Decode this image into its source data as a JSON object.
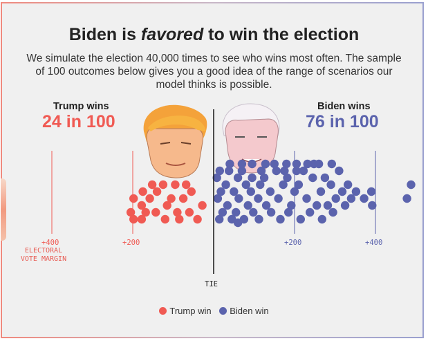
{
  "header": {
    "title_before": "Biden is ",
    "title_emphasis": "favored",
    "title_after": " to win the election",
    "subtitle": "We simulate the election 40,000 times to see who wins most often. The sample of 100 outcomes below gives you a good idea of the range of scenarios our model thinks is possible."
  },
  "trump": {
    "label": "Trump wins",
    "count_text": "24 in 100",
    "color": "#f05a53"
  },
  "biden": {
    "label": "Biden wins",
    "count_text": "76 in 100",
    "color": "#5b63ad"
  },
  "axis": {
    "ticks": [
      "+400",
      "+200",
      "+200",
      "+400"
    ],
    "margin_label": "ELECTORAL VOTE MARGIN",
    "tie_label": "TIE"
  },
  "legend": {
    "trump_label": "Trump win",
    "biden_label": "Biden win"
  },
  "portraits": {
    "trump": "trump-caricature-icon",
    "biden": "biden-caricature-icon"
  },
  "chart_data": {
    "type": "scatter",
    "title": "Biden is favored to win the election",
    "xlabel": "ELECTORAL VOTE MARGIN",
    "xlim": [
      -540,
      540
    ],
    "x_ticks": [
      -400,
      -200,
      200,
      400
    ],
    "series": [
      {
        "name": "Trump win",
        "count": 24
      },
      {
        "name": "Biden win",
        "count": 76
      }
    ],
    "points": [
      {
        "x": -205,
        "y": 3,
        "winner": "trump"
      },
      {
        "x": -198,
        "y": 7,
        "winner": "trump"
      },
      {
        "x": -198,
        "y": 1,
        "winner": "trump"
      },
      {
        "x": -178,
        "y": 5,
        "winner": "trump"
      },
      {
        "x": -178,
        "y": 1,
        "winner": "trump"
      },
      {
        "x": -175,
        "y": 9,
        "winner": "trump"
      },
      {
        "x": -168,
        "y": 3,
        "winner": "trump"
      },
      {
        "x": -158,
        "y": 7,
        "winner": "trump"
      },
      {
        "x": -152,
        "y": 11,
        "winner": "trump"
      },
      {
        "x": -143,
        "y": 3,
        "winner": "trump"
      },
      {
        "x": -140,
        "y": 9,
        "winner": "trump"
      },
      {
        "x": -125,
        "y": 11,
        "winner": "trump"
      },
      {
        "x": -120,
        "y": 1,
        "winner": "trump"
      },
      {
        "x": -115,
        "y": 5,
        "winner": "trump"
      },
      {
        "x": -105,
        "y": 7,
        "winner": "trump"
      },
      {
        "x": -95,
        "y": 11,
        "winner": "trump"
      },
      {
        "x": -90,
        "y": 3,
        "winner": "trump"
      },
      {
        "x": -85,
        "y": 1,
        "winner": "trump"
      },
      {
        "x": -75,
        "y": 7,
        "winner": "trump"
      },
      {
        "x": -68,
        "y": 11,
        "winner": "trump"
      },
      {
        "x": -60,
        "y": 3,
        "winner": "trump"
      },
      {
        "x": -55,
        "y": 9,
        "winner": "trump"
      },
      {
        "x": -40,
        "y": 1,
        "winner": "trump"
      },
      {
        "x": -28,
        "y": 5,
        "winner": "trump"
      },
      {
        "x": 8,
        "y": 13,
        "winner": "biden"
      },
      {
        "x": 10,
        "y": 7,
        "winner": "biden"
      },
      {
        "x": 14,
        "y": 1,
        "winner": "biden"
      },
      {
        "x": 18,
        "y": 9,
        "winner": "biden"
      },
      {
        "x": 22,
        "y": 3,
        "winner": "biden"
      },
      {
        "x": 30,
        "y": 11,
        "winner": "biden"
      },
      {
        "x": 34,
        "y": 5,
        "winner": "biden"
      },
      {
        "x": 38,
        "y": 15,
        "winner": "biden"
      },
      {
        "x": 45,
        "y": 1,
        "winner": "biden"
      },
      {
        "x": 50,
        "y": 9,
        "winner": "biden"
      },
      {
        "x": 55,
        "y": 3,
        "winner": "biden"
      },
      {
        "x": 60,
        "y": 13,
        "winner": "biden"
      },
      {
        "x": 62,
        "y": 7,
        "winner": "biden"
      },
      {
        "x": 70,
        "y": 15,
        "winner": "biden"
      },
      {
        "x": 75,
        "y": 1,
        "winner": "biden"
      },
      {
        "x": 80,
        "y": 11,
        "winner": "biden"
      },
      {
        "x": 85,
        "y": 5,
        "winner": "biden"
      },
      {
        "x": 92,
        "y": 9,
        "winner": "biden"
      },
      {
        "x": 95,
        "y": 13,
        "winner": "biden"
      },
      {
        "x": 98,
        "y": 3,
        "winner": "biden"
      },
      {
        "x": 110,
        "y": 7,
        "winner": "biden"
      },
      {
        "x": 112,
        "y": 1,
        "winner": "biden"
      },
      {
        "x": 115,
        "y": 11,
        "winner": "biden"
      },
      {
        "x": 125,
        "y": 13,
        "winner": "biden"
      },
      {
        "x": 130,
        "y": 5,
        "winner": "biden"
      },
      {
        "x": 140,
        "y": 9,
        "winner": "biden"
      },
      {
        "x": 142,
        "y": 3,
        "winner": "biden"
      },
      {
        "x": 155,
        "y": 15,
        "winner": "biden"
      },
      {
        "x": 160,
        "y": 7,
        "winner": "biden"
      },
      {
        "x": 165,
        "y": 1,
        "winner": "biden"
      },
      {
        "x": 172,
        "y": 11,
        "winner": "biden"
      },
      {
        "x": 182,
        "y": 13,
        "winner": "biden"
      },
      {
        "x": 185,
        "y": 3,
        "winner": "biden"
      },
      {
        "x": 192,
        "y": 5,
        "winner": "biden"
      },
      {
        "x": 200,
        "y": 9,
        "winner": "biden"
      },
      {
        "x": 210,
        "y": 11,
        "winner": "biden"
      },
      {
        "x": 215,
        "y": 1,
        "winner": "biden"
      },
      {
        "x": 222,
        "y": 15,
        "winner": "biden"
      },
      {
        "x": 230,
        "y": 7,
        "winner": "biden"
      },
      {
        "x": 238,
        "y": 3,
        "winner": "biden"
      },
      {
        "x": 245,
        "y": 13,
        "winner": "biden"
      },
      {
        "x": 255,
        "y": 5,
        "winner": "biden"
      },
      {
        "x": 265,
        "y": 9,
        "winner": "biden"
      },
      {
        "x": 268,
        "y": 1,
        "winner": "biden"
      },
      {
        "x": 275,
        "y": 13,
        "winner": "biden"
      },
      {
        "x": 282,
        "y": 5,
        "winner": "biden"
      },
      {
        "x": 290,
        "y": 11,
        "winner": "biden"
      },
      {
        "x": 292,
        "y": 17,
        "winner": "biden"
      },
      {
        "x": 295,
        "y": 3,
        "winner": "biden"
      },
      {
        "x": 302,
        "y": 7,
        "winner": "biden"
      },
      {
        "x": 310,
        "y": 15,
        "winner": "biden"
      },
      {
        "x": 318,
        "y": 9,
        "winner": "biden"
      },
      {
        "x": 325,
        "y": 5,
        "winner": "biden"
      },
      {
        "x": 332,
        "y": 11,
        "winner": "biden"
      },
      {
        "x": 340,
        "y": 7,
        "winner": "biden"
      },
      {
        "x": 352,
        "y": 9,
        "winner": "biden"
      },
      {
        "x": 372,
        "y": 7,
        "winner": "biden"
      },
      {
        "x": 390,
        "y": 9,
        "winner": "biden"
      },
      {
        "x": 392,
        "y": 5,
        "winner": "biden"
      },
      {
        "x": 478,
        "y": 7,
        "winner": "biden"
      },
      {
        "x": 488,
        "y": 11,
        "winner": "biden"
      },
      {
        "x": 60,
        "y": 0,
        "winner": "biden"
      },
      {
        "x": 118,
        "y": 15,
        "winner": "biden"
      },
      {
        "x": 175,
        "y": 15,
        "winner": "biden"
      },
      {
        "x": 205,
        "y": 15,
        "winner": "biden"
      },
      {
        "x": 248,
        "y": 17,
        "winner": "biden"
      },
      {
        "x": 95,
        "y": 17,
        "winner": "biden"
      },
      {
        "x": 150,
        "y": 17,
        "winner": "biden"
      },
      {
        "x": 40,
        "y": 17,
        "winner": "biden"
      },
      {
        "x": 260,
        "y": 17,
        "winner": "biden"
      },
      {
        "x": 180,
        "y": 17,
        "winner": "biden"
      },
      {
        "x": 128,
        "y": 17,
        "winner": "biden"
      },
      {
        "x": 232,
        "y": 17,
        "winner": "biden"
      },
      {
        "x": 70,
        "y": 17,
        "winner": "biden"
      },
      {
        "x": 205,
        "y": 17,
        "winner": "biden"
      },
      {
        "x": 15,
        "y": 15,
        "winner": "biden"
      }
    ]
  }
}
